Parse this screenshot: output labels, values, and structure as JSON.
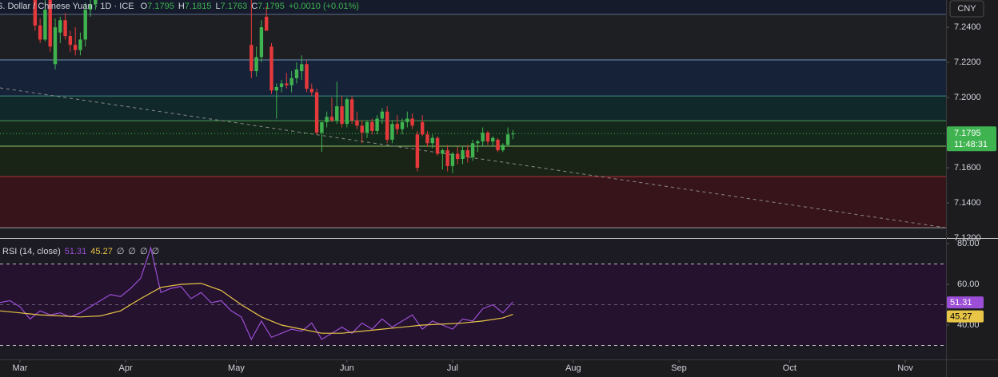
{
  "header": {
    "symbol": "S. Dollar / Chinese Yuan · 1D · ICE",
    "ohlc": [
      {
        "key": "O",
        "value": "7.1795"
      },
      {
        "key": "H",
        "value": "7.1815"
      },
      {
        "key": "L",
        "value": "7.1763"
      },
      {
        "key": "C",
        "value": "7.1795"
      }
    ],
    "change": "+0.0010 (+0.01%)"
  },
  "chart_data": [
    {
      "type": "candlestick",
      "currency": "CNY",
      "xlim": [
        -3.97,
        184.1
      ],
      "ylim": [
        7.1205,
        7.2555
      ],
      "xticks": [
        {
          "value": 0,
          "label": "Mar"
        },
        {
          "value": 21,
          "label": "Apr"
        },
        {
          "value": 43,
          "label": "May"
        },
        {
          "value": 65,
          "label": "Jun"
        },
        {
          "value": 86,
          "label": "Jul"
        },
        {
          "value": 110,
          "label": "Aug"
        },
        {
          "value": 131,
          "label": "Sep"
        },
        {
          "value": 153,
          "label": "Oct"
        },
        {
          "value": 176,
          "label": "Nov"
        }
      ],
      "yticks": [
        {
          "value": 7.24,
          "label": "7.2400"
        },
        {
          "value": 7.22,
          "label": "7.2200"
        },
        {
          "value": 7.2,
          "label": "7.2000"
        },
        {
          "value": 7.16,
          "label": "7.1600"
        },
        {
          "value": 7.14,
          "label": "7.1400"
        },
        {
          "value": 7.12,
          "label": "7.1200"
        }
      ],
      "up_color": "#3fb34f",
      "down_color": "#e5393b",
      "levels": [
        7.2473,
        7.2214,
        7.2009,
        7.1868,
        7.1723,
        7.155,
        7.1259
      ],
      "level_colors": [
        "#5b6b8c",
        "#6f93b8",
        "#3f8f86",
        "#4f9a5a",
        "#8fbf6a",
        "#b0303a",
        "#9a9a9a"
      ],
      "zone_colors": [
        "#151b2b",
        "#1e1f22",
        "#152238",
        "#11282a",
        "#14271b",
        "#1a2416",
        "#371419",
        "#1e1f22"
      ],
      "trendline": {
        "x": [
          -3.97,
          184.1
        ],
        "values": [
          7.2055,
          7.1259
        ]
      },
      "last_price": {
        "value": 7.1795,
        "label": "7.1795"
      },
      "countdown": "11:48:31",
      "candles": {
        "x": [
          3,
          4,
          5,
          6,
          7,
          8,
          9,
          10,
          11,
          12,
          13,
          14,
          15,
          46,
          47,
          48,
          49,
          50,
          51,
          52,
          53,
          54,
          55,
          56,
          57,
          58,
          59,
          60,
          61,
          62,
          63,
          64,
          65,
          66,
          67,
          68,
          69,
          70,
          71,
          72,
          73,
          74,
          75,
          76,
          77,
          78,
          79,
          80,
          81,
          82,
          83,
          84,
          85,
          86,
          87,
          88,
          89,
          90,
          91,
          92,
          93,
          94,
          95,
          96,
          97,
          98
        ],
        "open": [
          7.256,
          7.241,
          7.233,
          7.26,
          7.219,
          7.237,
          7.244,
          7.235,
          7.23,
          7.227,
          7.233,
          7.25,
          7.253,
          7.23,
          7.215,
          7.223,
          7.246,
          7.229,
          7.204,
          7.206,
          7.208,
          7.207,
          7.211,
          7.215,
          7.219,
          7.205,
          7.203,
          7.18,
          7.186,
          7.189,
          7.187,
          7.195,
          7.185,
          7.199,
          7.187,
          7.184,
          7.18,
          7.186,
          7.181,
          7.188,
          7.192,
          7.176,
          7.185,
          7.182,
          7.186,
          7.188,
          7.179,
          7.186,
          7.179,
          7.174,
          7.177,
          7.168,
          7.17,
          7.161,
          7.168,
          7.165,
          7.17,
          7.166,
          7.174,
          7.175,
          7.18,
          7.175,
          7.176,
          7.17,
          7.173,
          7.1795
        ],
        "high": [
          7.26,
          7.245,
          7.258,
          7.265,
          7.245,
          7.246,
          7.248,
          7.238,
          7.24,
          7.237,
          7.254,
          7.256,
          7.258,
          7.256,
          7.229,
          7.244,
          7.252,
          7.231,
          7.208,
          7.21,
          7.214,
          7.215,
          7.22,
          7.224,
          7.221,
          7.208,
          7.205,
          7.185,
          7.192,
          7.2,
          7.209,
          7.201,
          7.2,
          7.201,
          7.192,
          7.187,
          7.187,
          7.188,
          7.19,
          7.194,
          7.195,
          7.187,
          7.19,
          7.188,
          7.192,
          7.191,
          7.181,
          7.19,
          7.181,
          7.179,
          7.178,
          7.171,
          7.173,
          7.169,
          7.172,
          7.172,
          7.173,
          7.176,
          7.176,
          7.183,
          7.181,
          7.178,
          7.177,
          7.174,
          7.183,
          7.1815
        ],
        "low": [
          7.238,
          7.231,
          7.232,
          7.226,
          7.216,
          7.231,
          7.233,
          7.226,
          7.224,
          7.224,
          7.229,
          7.246,
          7.25,
          7.211,
          7.212,
          7.22,
          7.239,
          7.202,
          7.188,
          7.203,
          7.205,
          7.203,
          7.208,
          7.21,
          7.203,
          7.201,
          7.179,
          7.169,
          7.183,
          7.186,
          7.185,
          7.183,
          7.183,
          7.185,
          7.182,
          7.174,
          7.177,
          7.179,
          7.179,
          7.185,
          7.174,
          7.174,
          7.179,
          7.179,
          7.183,
          7.182,
          7.158,
          7.178,
          7.172,
          7.171,
          7.167,
          7.159,
          7.158,
          7.157,
          7.162,
          7.162,
          7.163,
          7.164,
          7.169,
          7.172,
          7.173,
          7.172,
          7.169,
          7.169,
          7.172,
          7.1763
        ],
        "close": [
          7.241,
          7.233,
          7.25,
          7.229,
          7.24,
          7.244,
          7.235,
          7.23,
          7.227,
          7.233,
          7.25,
          7.253,
          7.256,
          7.215,
          7.223,
          7.24,
          7.238,
          7.204,
          7.206,
          7.208,
          7.207,
          7.211,
          7.216,
          7.219,
          7.205,
          7.203,
          7.18,
          7.186,
          7.189,
          7.187,
          7.195,
          7.185,
          7.199,
          7.187,
          7.184,
          7.18,
          7.186,
          7.181,
          7.188,
          7.192,
          7.176,
          7.185,
          7.182,
          7.186,
          7.188,
          7.184,
          7.16,
          7.179,
          7.174,
          7.177,
          7.168,
          7.17,
          7.161,
          7.168,
          7.165,
          7.17,
          7.166,
          7.174,
          7.175,
          7.18,
          7.175,
          7.177,
          7.17,
          7.173,
          7.179,
          7.1795
        ]
      }
    },
    {
      "type": "line",
      "title": "RSI (14, close)",
      "ylim": [
        23.14,
        81.96
      ],
      "yticks": [
        {
          "value": 80,
          "label": "80.00"
        },
        {
          "value": 60,
          "label": "60.00"
        },
        {
          "value": 40,
          "label": "40.00"
        }
      ],
      "levels": [
        70,
        50,
        30
      ],
      "band": [
        30,
        70
      ],
      "placeholders": [
        "∅",
        "∅",
        "∅",
        "∅"
      ],
      "series": [
        {
          "color": "#9c4fd6",
          "value_label": "51.31",
          "x": [
            -4,
            -2,
            0,
            2,
            4,
            6,
            8,
            10,
            12,
            14,
            16,
            18,
            20,
            22,
            24,
            26,
            28,
            30,
            32,
            34,
            36,
            38,
            40,
            42,
            44,
            46,
            48,
            50,
            52,
            54,
            56,
            58,
            60,
            62,
            64,
            66,
            68,
            70,
            72,
            74,
            76,
            78,
            80,
            82,
            84,
            86,
            88,
            90,
            92,
            94,
            96,
            98
          ],
          "values": [
            51,
            52,
            49,
            43,
            47,
            45,
            46,
            44,
            46,
            49,
            52,
            55,
            54,
            58,
            63,
            78,
            56,
            58,
            59,
            53,
            56,
            51,
            52,
            47,
            44,
            33,
            42,
            34,
            36,
            38,
            37,
            41,
            33,
            36,
            39,
            36,
            41,
            38,
            43,
            39,
            42,
            45,
            38,
            42,
            40,
            38,
            43,
            42,
            48,
            50,
            46,
            51.31
          ]
        },
        {
          "color": "#e8c547",
          "value_label": "45.27",
          "x": [
            -4,
            0,
            4,
            8,
            12,
            16,
            20,
            24,
            28,
            32,
            36,
            40,
            44,
            48,
            52,
            56,
            60,
            64,
            68,
            72,
            76,
            80,
            84,
            88,
            92,
            96,
            98
          ],
          "values": [
            47,
            46,
            45,
            44.5,
            44,
            44.5,
            47,
            53,
            58.5,
            60,
            60.5,
            57,
            50,
            44,
            40,
            38,
            36,
            36,
            37,
            38,
            39,
            40,
            40.5,
            41,
            42,
            43.5,
            45.27
          ]
        }
      ]
    }
  ]
}
